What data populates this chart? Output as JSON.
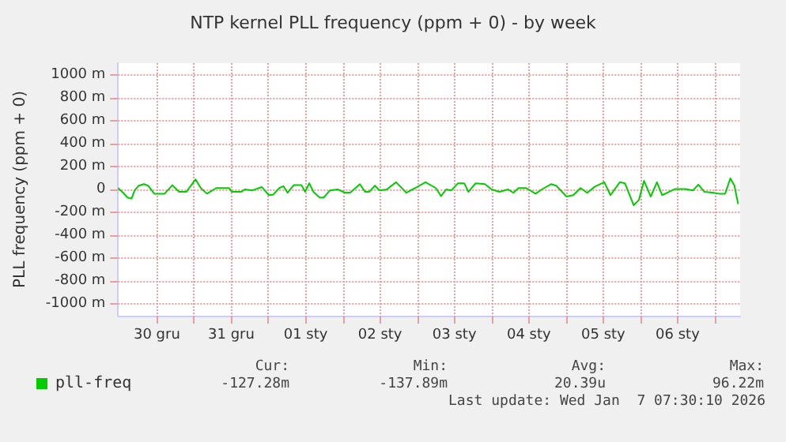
{
  "chart_data": {
    "type": "line",
    "title": "NTP kernel PLL frequency (ppm + 0) - by week",
    "ylabel": "PLL frequency (ppm + 0)",
    "x": [
      "2025-12-29T23:30",
      "2025-12-30T01:10",
      "2025-12-30T02:30",
      "2025-12-30T03:50",
      "2025-12-30T04:50",
      "2025-12-30T06:10",
      "2025-12-30T07:50",
      "2025-12-30T09:10",
      "2025-12-30T11:10",
      "2025-12-30T14:30",
      "2025-12-30T17:00",
      "2025-12-30T19:10",
      "2025-12-30T21:30",
      "2025-12-31T00:30",
      "2025-12-31T02:10",
      "2025-12-31T04:10",
      "2025-12-31T07:10",
      "2025-12-31T11:20",
      "2025-12-31T12:10",
      "2025-12-31T15:10",
      "2025-12-31T16:20",
      "2025-12-31T18:50",
      "2025-12-31T21:50",
      "2026-01-01T00:10",
      "2026-01-01T01:30",
      "2026-01-01T03:30",
      "2026-01-01T04:50",
      "2026-01-01T06:10",
      "2026-01-01T08:10",
      "2026-01-01T10:40",
      "2026-01-01T11:50",
      "2026-01-01T13:10",
      "2026-01-01T14:30",
      "2026-01-01T16:30",
      "2026-01-01T17:50",
      "2026-01-01T19:50",
      "2026-01-01T22:20",
      "2026-01-02T00:50",
      "2026-01-02T02:30",
      "2026-01-02T05:30",
      "2026-01-02T07:10",
      "2026-01-02T08:30",
      "2026-01-02T10:20",
      "2026-01-02T11:50",
      "2026-01-02T14:10",
      "2026-01-02T17:10",
      "2026-01-02T20:30",
      "2026-01-02T23:20",
      "2026-01-03T02:40",
      "2026-01-03T06:00",
      "2026-01-03T07:40",
      "2026-01-03T09:20",
      "2026-01-03T11:00",
      "2026-01-03T13:10",
      "2026-01-03T15:10",
      "2026-01-03T16:30",
      "2026-01-03T18:50",
      "2026-01-03T21:50",
      "2026-01-04T00:00",
      "2026-01-04T02:30",
      "2026-01-04T05:20",
      "2026-01-04T07:00",
      "2026-01-04T08:40",
      "2026-01-04T11:10",
      "2026-01-04T14:10",
      "2026-01-04T16:10",
      "2026-01-04T19:10",
      "2026-01-04T20:50",
      "2026-01-05T00:10",
      "2026-01-05T02:20",
      "2026-01-05T04:40",
      "2026-01-05T06:50",
      "2026-01-05T09:20",
      "2026-01-05T12:20",
      "2026-01-05T14:20",
      "2026-01-05T17:20",
      "2026-01-05T19:00",
      "2026-01-05T21:50",
      "2026-01-05T23:30",
      "2026-01-06T01:10",
      "2026-01-06T03:20",
      "2026-01-06T05:20",
      "2026-01-06T07:00",
      "2026-01-06T08:40",
      "2026-01-06T11:10",
      "2026-01-06T14:30",
      "2026-01-06T17:00",
      "2026-01-06T18:40",
      "2026-01-06T20:40",
      "2026-01-06T23:40",
      "2026-01-07T01:20",
      "2026-01-07T03:20",
      "2026-01-07T05:00",
      "2026-01-07T06:20",
      "2026-01-07T07:30"
    ],
    "series": [
      {
        "name": "pll-freq",
        "color": "#00cc00",
        "values": [
          12,
          -29,
          -70,
          -80,
          -8,
          33,
          46,
          33,
          -37,
          -37,
          37,
          -21,
          -21,
          88,
          12,
          -37,
          12,
          12,
          -21,
          -21,
          0,
          -8,
          21,
          -50,
          -46,
          12,
          29,
          -29,
          37,
          37,
          -21,
          54,
          -21,
          -71,
          -71,
          -8,
          0,
          -29,
          -25,
          46,
          -21,
          -21,
          33,
          -8,
          0,
          63,
          -29,
          12,
          63,
          12,
          -58,
          0,
          -8,
          54,
          54,
          -21,
          54,
          46,
          0,
          -21,
          0,
          -29,
          12,
          12,
          -37,
          0,
          46,
          33,
          -62,
          -50,
          12,
          -29,
          25,
          63,
          -50,
          63,
          54,
          -138,
          -92,
          75,
          -62,
          63,
          -50,
          -29,
          4,
          4,
          -8,
          42,
          -21,
          -29,
          -37,
          -37,
          96,
          33,
          -127
        ]
      }
    ],
    "xlim": [
      "2025-12-29T23:30",
      "2026-01-07T08:10"
    ],
    "xticks": [
      {
        "value": "2025-12-30T12:00",
        "label": "30 gru"
      },
      {
        "value": "2025-12-31T00:00",
        "label": null
      },
      {
        "value": "2025-12-31T12:00",
        "label": "31 gru"
      },
      {
        "value": "2026-01-01T00:00",
        "label": null
      },
      {
        "value": "2026-01-01T12:00",
        "label": "01 sty"
      },
      {
        "value": "2026-01-02T00:00",
        "label": null
      },
      {
        "value": "2026-01-02T12:00",
        "label": "02 sty"
      },
      {
        "value": "2026-01-03T00:00",
        "label": null
      },
      {
        "value": "2026-01-03T12:00",
        "label": "03 sty"
      },
      {
        "value": "2026-01-04T00:00",
        "label": null
      },
      {
        "value": "2026-01-04T12:00",
        "label": "04 sty"
      },
      {
        "value": "2026-01-05T00:00",
        "label": null
      },
      {
        "value": "2026-01-05T12:00",
        "label": "05 sty"
      },
      {
        "value": "2026-01-06T00:00",
        "label": null
      },
      {
        "value": "2026-01-06T12:00",
        "label": "06 sty"
      },
      {
        "value": "2026-01-07T00:00",
        "label": null
      }
    ],
    "ylim": [
      -1100,
      1100
    ],
    "yticks": [
      {
        "value": 1000,
        "label": "1000 m"
      },
      {
        "value": 800,
        "label": "800 m"
      },
      {
        "value": 600,
        "label": "600 m"
      },
      {
        "value": 400,
        "label": "400 m"
      },
      {
        "value": 200,
        "label": "200 m"
      },
      {
        "value": 0,
        "label": "0"
      },
      {
        "value": -200,
        "label": "-200 m"
      },
      {
        "value": -400,
        "label": "-400 m"
      },
      {
        "value": -600,
        "label": "-600 m"
      },
      {
        "value": -800,
        "label": "-800 m"
      },
      {
        "value": -1000,
        "label": "-1000 m"
      }
    ],
    "grid": true,
    "legend": "bottom left",
    "marker": "none",
    "line_style": "solid",
    "annotations": [
      "Cur:",
      "-127.28m",
      "Min:",
      "-137.89m",
      "Avg:",
      "20.39u",
      "Max:",
      "96.22m",
      "Last update: Wed Jan  7 07:30:10 2026"
    ]
  }
}
